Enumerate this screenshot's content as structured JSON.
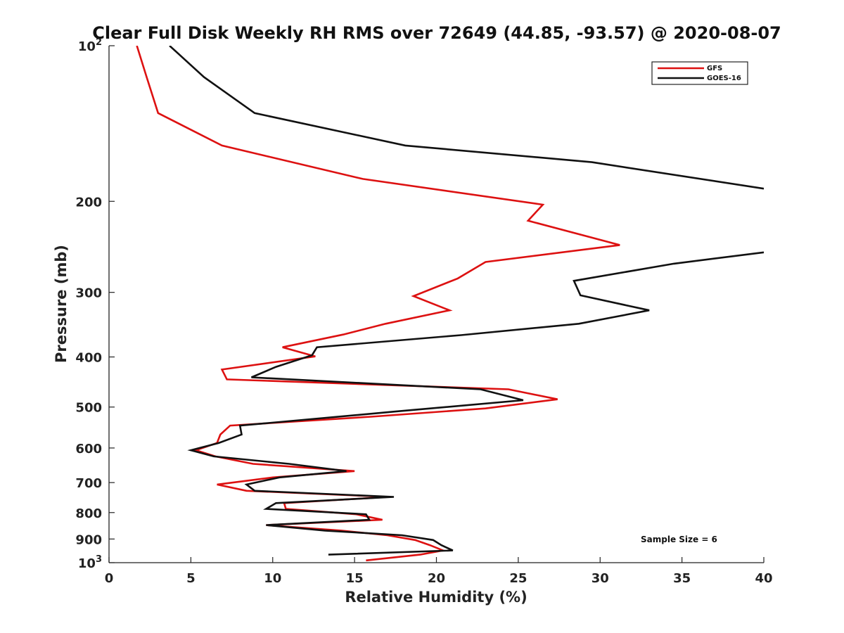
{
  "chart_data": {
    "type": "line",
    "title": "Clear Full Disk Weekly RH RMS over 72649 (44.85, -93.57) @ 2020-08-07",
    "xlabel": "Relative Humidity (%)",
    "ylabel": "Pressure (mb)",
    "xlim": [
      0,
      40
    ],
    "ylim": [
      100,
      1000
    ],
    "y_scale": "log",
    "y_reversed": true,
    "x_ticks": [
      0,
      5,
      10,
      15,
      20,
      25,
      30,
      35,
      40
    ],
    "y_ticks": [
      {
        "value": 100,
        "base": "10",
        "exp": "2"
      },
      {
        "value": 200,
        "label": "200"
      },
      {
        "value": 300,
        "label": "300"
      },
      {
        "value": 400,
        "label": "400"
      },
      {
        "value": 500,
        "label": "500"
      },
      {
        "value": 600,
        "label": "600"
      },
      {
        "value": 700,
        "label": "700"
      },
      {
        "value": 800,
        "label": "800"
      },
      {
        "value": 900,
        "label": "900"
      },
      {
        "value": 1000,
        "base": "10",
        "exp": "3"
      }
    ],
    "legend_position": "top-right",
    "grid": false,
    "annotation": "Sample Size = 6",
    "series": [
      {
        "name": "GFS",
        "color": "#dd1111",
        "points": [
          [
            1.7,
            100
          ],
          [
            2.3,
            115
          ],
          [
            3.0,
            135
          ],
          [
            6.9,
            156
          ],
          [
            15.5,
            181
          ],
          [
            26.5,
            203
          ],
          [
            25.6,
            218
          ],
          [
            31.2,
            243
          ],
          [
            23.0,
            262
          ],
          [
            21.3,
            282
          ],
          [
            18.6,
            305
          ],
          [
            20.8,
            325
          ],
          [
            16.9,
            345
          ],
          [
            14.3,
            362
          ],
          [
            10.6,
            383
          ],
          [
            12.6,
            399
          ],
          [
            6.9,
            423
          ],
          [
            7.2,
            442
          ],
          [
            24.4,
            462
          ],
          [
            27.4,
            483
          ],
          [
            23.0,
            503
          ],
          [
            16.0,
            522
          ],
          [
            7.4,
            543
          ],
          [
            6.8,
            565
          ],
          [
            6.6,
            587
          ],
          [
            5.3,
            606
          ],
          [
            6.5,
            623
          ],
          [
            8.8,
            644
          ],
          [
            15.0,
            665
          ],
          [
            10.0,
            684
          ],
          [
            6.6,
            706
          ],
          [
            8.4,
            726
          ],
          [
            17.1,
            746
          ],
          [
            10.7,
            767
          ],
          [
            10.8,
            787
          ],
          [
            15.1,
            806
          ],
          [
            16.7,
            826
          ],
          [
            9.6,
            846
          ],
          [
            14.2,
            867
          ],
          [
            17.0,
            885
          ],
          [
            18.7,
            904
          ],
          [
            19.6,
            925
          ],
          [
            20.4,
            947
          ],
          [
            19.0,
            965
          ],
          [
            15.7,
            990
          ]
        ]
      },
      {
        "name": "GOES-16",
        "color": "#111111",
        "points": [
          [
            3.7,
            100
          ],
          [
            5.8,
            115
          ],
          [
            8.9,
            135
          ],
          [
            18.1,
            156
          ],
          [
            29.5,
            168
          ],
          [
            40.0,
            189
          ]
        ],
        "points_lower": [
          [
            40.0,
            251
          ],
          [
            34.5,
            264
          ],
          [
            28.4,
            285
          ],
          [
            28.8,
            304
          ],
          [
            33.0,
            325
          ],
          [
            28.7,
            345
          ],
          [
            21.5,
            363
          ],
          [
            12.7,
            383
          ],
          [
            12.4,
            397
          ],
          [
            10.2,
            418
          ],
          [
            8.7,
            438
          ],
          [
            22.7,
            462
          ],
          [
            25.3,
            485
          ],
          [
            17.5,
            510
          ],
          [
            8.0,
            543
          ],
          [
            8.1,
            565
          ],
          [
            6.7,
            587
          ],
          [
            5.0,
            606
          ],
          [
            6.4,
            623
          ],
          [
            11.0,
            644
          ],
          [
            14.5,
            665
          ],
          [
            10.4,
            684
          ],
          [
            8.4,
            706
          ],
          [
            8.9,
            726
          ],
          [
            17.4,
            746
          ],
          [
            10.2,
            767
          ],
          [
            9.6,
            787
          ],
          [
            15.7,
            806
          ],
          [
            15.9,
            826
          ],
          [
            9.6,
            846
          ],
          [
            13.2,
            867
          ],
          [
            17.9,
            885
          ],
          [
            19.8,
            904
          ],
          [
            20.3,
            925
          ],
          [
            21.0,
            947
          ],
          [
            13.4,
            965
          ]
        ]
      }
    ]
  }
}
